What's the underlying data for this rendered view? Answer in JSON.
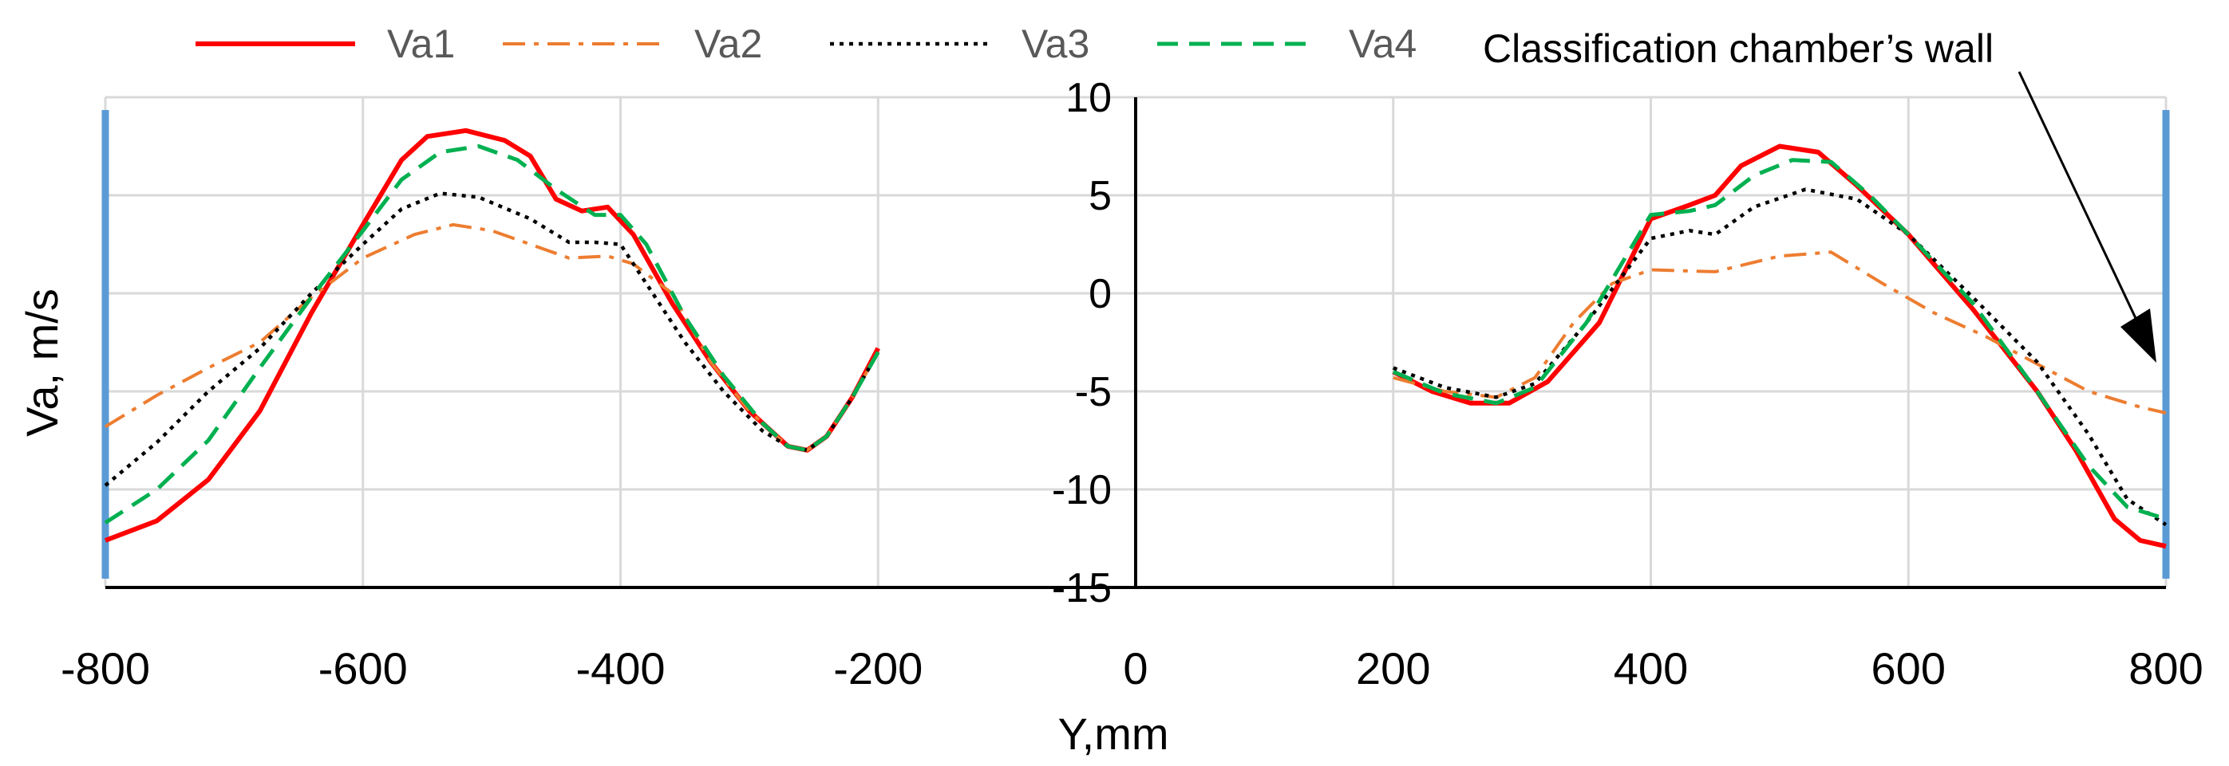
{
  "chart_data": {
    "type": "line",
    "xlabel": "Y,mm",
    "ylabel": "Va, m/s",
    "xlim": [
      -800,
      800
    ],
    "ylim": [
      -15,
      10
    ],
    "xticks": [
      -800,
      -600,
      -400,
      -200,
      0,
      200,
      400,
      600,
      800
    ],
    "yticks": [
      10,
      5,
      0,
      -5,
      -10,
      -15
    ],
    "grid": true,
    "legend_position": "top",
    "annotation": "Classification chamber’s wall",
    "wall_color": "#5B9BD5",
    "series": [
      {
        "name": "Va1",
        "color": "#FF0000",
        "dash": "solid",
        "segments": [
          [
            [
              -800,
              -12.6
            ],
            [
              -760,
              -11.6
            ],
            [
              -720,
              -9.5
            ],
            [
              -680,
              -6
            ],
            [
              -640,
              -1
            ],
            [
              -600,
              3.5
            ],
            [
              -570,
              6.8
            ],
            [
              -550,
              8.0
            ],
            [
              -520,
              8.3
            ],
            [
              -490,
              7.8
            ],
            [
              -470,
              7.0
            ],
            [
              -450,
              4.8
            ],
            [
              -430,
              4.2
            ],
            [
              -410,
              4.4
            ],
            [
              -390,
              3.0
            ],
            [
              -360,
              -0.5
            ],
            [
              -330,
              -3.5
            ],
            [
              -300,
              -6.0
            ],
            [
              -270,
              -7.8
            ],
            [
              -255,
              -8.0
            ],
            [
              -240,
              -7.3
            ],
            [
              -220,
              -5.3
            ],
            [
              -200,
              -2.8
            ]
          ],
          [
            [
              200,
              -4.0
            ],
            [
              230,
              -5.0
            ],
            [
              260,
              -5.6
            ],
            [
              290,
              -5.6
            ],
            [
              320,
              -4.5
            ],
            [
              360,
              -1.5
            ],
            [
              400,
              3.8
            ],
            [
              430,
              4.5
            ],
            [
              450,
              5.0
            ],
            [
              470,
              6.5
            ],
            [
              500,
              7.5
            ],
            [
              530,
              7.2
            ],
            [
              560,
              5.5
            ],
            [
              600,
              3.0
            ],
            [
              650,
              -0.8
            ],
            [
              700,
              -5.0
            ],
            [
              730,
              -8.0
            ],
            [
              760,
              -11.5
            ],
            [
              780,
              -12.6
            ],
            [
              800,
              -12.9
            ]
          ]
        ]
      },
      {
        "name": "Va2",
        "color": "#ED7D31",
        "dash": "dashdot",
        "segments": [
          [
            [
              -800,
              -6.8
            ],
            [
              -760,
              -5.2
            ],
            [
              -720,
              -3.8
            ],
            [
              -680,
              -2.5
            ],
            [
              -640,
              -0.2
            ],
            [
              -600,
              1.8
            ],
            [
              -560,
              3.0
            ],
            [
              -530,
              3.5
            ],
            [
              -500,
              3.2
            ],
            [
              -470,
              2.5
            ],
            [
              -440,
              1.8
            ],
            [
              -410,
              1.9
            ],
            [
              -390,
              1.5
            ],
            [
              -360,
              0
            ],
            [
              -330,
              -3.5
            ],
            [
              -300,
              -6.0
            ],
            [
              -270,
              -7.8
            ],
            [
              -255,
              -8.0
            ],
            [
              -240,
              -7.3
            ],
            [
              -220,
              -5.3
            ],
            [
              -200,
              -3.0
            ]
          ],
          [
            [
              200,
              -4.3
            ],
            [
              240,
              -5.0
            ],
            [
              280,
              -5.3
            ],
            [
              310,
              -4.3
            ],
            [
              340,
              -1.5
            ],
            [
              370,
              0.5
            ],
            [
              400,
              1.2
            ],
            [
              450,
              1.1
            ],
            [
              500,
              1.9
            ],
            [
              540,
              2.1
            ],
            [
              580,
              0.5
            ],
            [
              620,
              -1.0
            ],
            [
              660,
              -2.2
            ],
            [
              700,
              -3.6
            ],
            [
              740,
              -5.0
            ],
            [
              780,
              -5.8
            ],
            [
              800,
              -6.1
            ]
          ]
        ]
      },
      {
        "name": "Va3",
        "color": "#000000",
        "dash": "dotted",
        "segments": [
          [
            [
              -800,
              -9.8
            ],
            [
              -760,
              -7.6
            ],
            [
              -720,
              -5.0
            ],
            [
              -680,
              -2.8
            ],
            [
              -640,
              0
            ],
            [
              -600,
              2.5
            ],
            [
              -570,
              4.3
            ],
            [
              -540,
              5.1
            ],
            [
              -510,
              4.9
            ],
            [
              -470,
              3.8
            ],
            [
              -440,
              2.6
            ],
            [
              -420,
              2.6
            ],
            [
              -400,
              2.5
            ],
            [
              -380,
              0.5
            ],
            [
              -350,
              -2.5
            ],
            [
              -320,
              -5.0
            ],
            [
              -290,
              -7.0
            ],
            [
              -270,
              -7.8
            ],
            [
              -255,
              -8.0
            ],
            [
              -240,
              -7.3
            ],
            [
              -220,
              -5.3
            ],
            [
              -200,
              -3.0
            ]
          ],
          [
            [
              200,
              -3.8
            ],
            [
              240,
              -4.8
            ],
            [
              280,
              -5.3
            ],
            [
              310,
              -4.6
            ],
            [
              350,
              -1.5
            ],
            [
              400,
              2.8
            ],
            [
              430,
              3.2
            ],
            [
              450,
              3.0
            ],
            [
              480,
              4.4
            ],
            [
              520,
              5.3
            ],
            [
              560,
              4.8
            ],
            [
              600,
              3.0
            ],
            [
              650,
              -0.2
            ],
            [
              700,
              -3.5
            ],
            [
              740,
              -7.2
            ],
            [
              770,
              -10.5
            ],
            [
              800,
              -11.8
            ]
          ]
        ]
      },
      {
        "name": "Va4",
        "color": "#00B050",
        "dash": "dashed",
        "segments": [
          [
            [
              -800,
              -11.7
            ],
            [
              -760,
              -10.0
            ],
            [
              -720,
              -7.5
            ],
            [
              -680,
              -3.8
            ],
            [
              -640,
              -0.2
            ],
            [
              -600,
              3.2
            ],
            [
              -570,
              5.8
            ],
            [
              -540,
              7.2
            ],
            [
              -510,
              7.5
            ],
            [
              -480,
              6.8
            ],
            [
              -450,
              5.3
            ],
            [
              -420,
              4.0
            ],
            [
              -400,
              4.0
            ],
            [
              -380,
              2.5
            ],
            [
              -350,
              -1.2
            ],
            [
              -320,
              -4.2
            ],
            [
              -290,
              -6.6
            ],
            [
              -270,
              -7.8
            ],
            [
              -255,
              -8.0
            ],
            [
              -240,
              -7.3
            ],
            [
              -220,
              -5.3
            ],
            [
              -200,
              -3.0
            ]
          ],
          [
            [
              200,
              -4.0
            ],
            [
              240,
              -5.1
            ],
            [
              280,
              -5.6
            ],
            [
              310,
              -4.8
            ],
            [
              350,
              -1.5
            ],
            [
              400,
              4.0
            ],
            [
              430,
              4.2
            ],
            [
              450,
              4.5
            ],
            [
              480,
              6.0
            ],
            [
              510,
              6.8
            ],
            [
              540,
              6.7
            ],
            [
              570,
              5.0
            ],
            [
              600,
              3.0
            ],
            [
              650,
              -0.5
            ],
            [
              700,
              -5.0
            ],
            [
              740,
              -8.8
            ],
            [
              770,
              -10.9
            ],
            [
              800,
              -11.5
            ]
          ]
        ]
      }
    ]
  }
}
